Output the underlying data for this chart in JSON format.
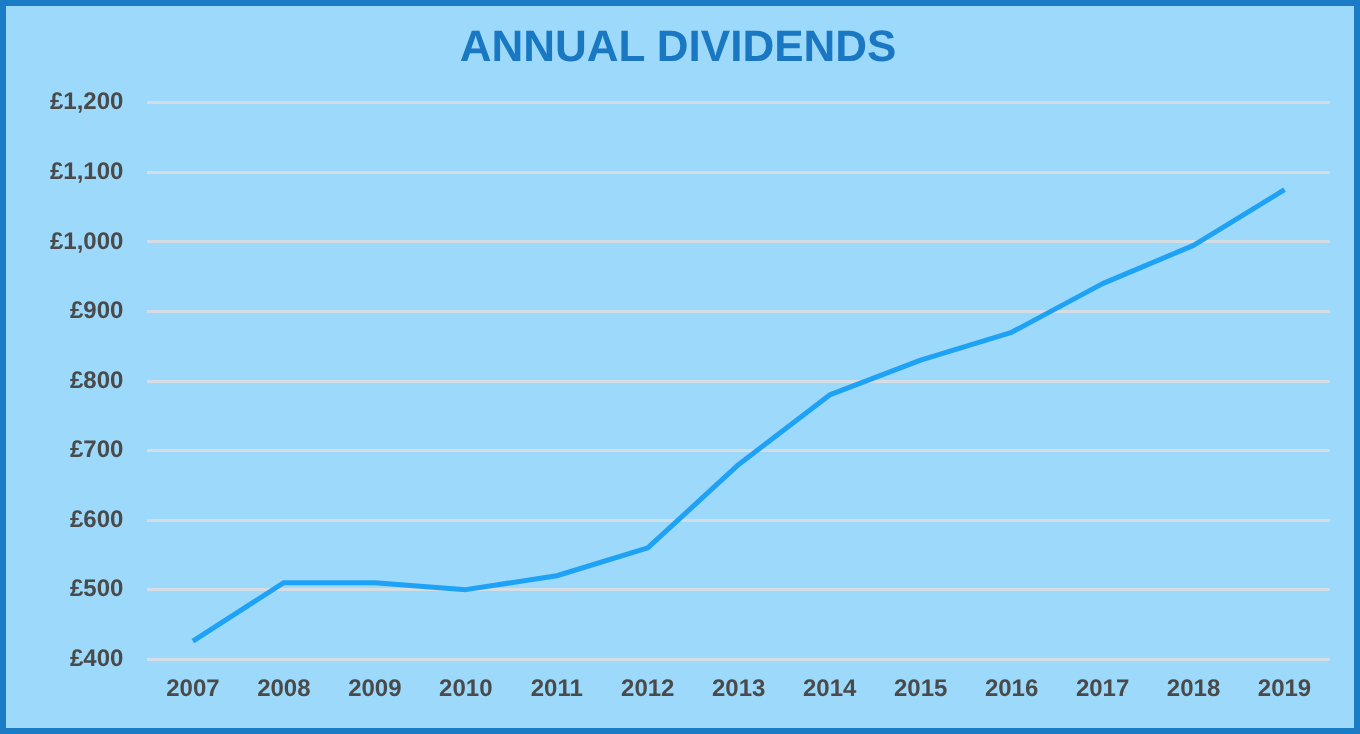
{
  "chart_data": {
    "type": "line",
    "title": "ANNUAL DIVIDENDS",
    "categories": [
      "2007",
      "2008",
      "2009",
      "2010",
      "2011",
      "2012",
      "2013",
      "2014",
      "2015",
      "2016",
      "2017",
      "2018",
      "2019"
    ],
    "series": [
      {
        "color": "#1ea2f5",
        "values": [
          426,
          510,
          510,
          500,
          520,
          560,
          680,
          780,
          830,
          870,
          940,
          995,
          1075
        ]
      }
    ],
    "ylim": [
      400,
      1200
    ],
    "yticks": [
      {
        "value": 400,
        "label": "£400"
      },
      {
        "value": 500,
        "label": "£500"
      },
      {
        "value": 600,
        "label": "£600"
      },
      {
        "value": 700,
        "label": "£700"
      },
      {
        "value": 800,
        "label": "£800"
      },
      {
        "value": 900,
        "label": "£900"
      },
      {
        "value": 1000,
        "label": "£1,000"
      },
      {
        "value": 1100,
        "label": "£1,100"
      },
      {
        "value": 1200,
        "label": "£1,200"
      }
    ],
    "grid": "y",
    "legend": false,
    "marker": "none",
    "line_style": "solid"
  }
}
